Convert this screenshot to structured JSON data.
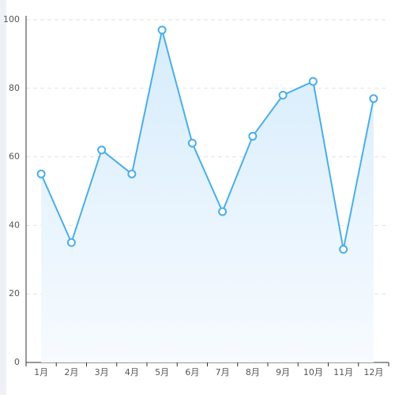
{
  "chart_data": {
    "type": "line",
    "categories": [
      "1月",
      "2月",
      "3月",
      "4月",
      "5月",
      "6月",
      "7月",
      "8月",
      "9月",
      "10月",
      "11月",
      "12月"
    ],
    "values": [
      55,
      35,
      62,
      55,
      97,
      64,
      44,
      66,
      78,
      82,
      33,
      77
    ],
    "color": "#4aaee8",
    "ylim": [
      0,
      100
    ],
    "yticks": [
      0,
      20,
      40,
      60,
      80,
      100
    ],
    "grid": true
  }
}
